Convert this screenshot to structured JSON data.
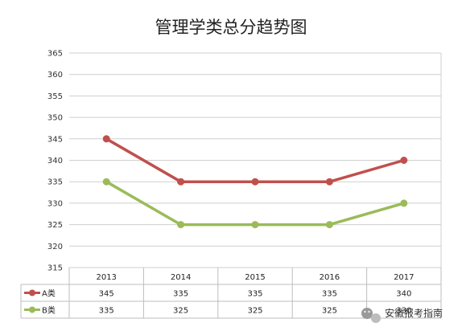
{
  "chart_data": {
    "type": "line",
    "title": "管理学类总分趋势图",
    "xlabel": "",
    "ylabel": "",
    "categories": [
      "2013",
      "2014",
      "2015",
      "2016",
      "2017"
    ],
    "series": [
      {
        "name": "A类",
        "color": "#c0504d",
        "values": [
          345,
          335,
          335,
          335,
          340
        ]
      },
      {
        "name": "B类",
        "color": "#9bbb59",
        "values": [
          335,
          325,
          325,
          325,
          330
        ]
      }
    ],
    "ylim": [
      315,
      365
    ],
    "yticks": [
      315,
      320,
      325,
      330,
      335,
      340,
      345,
      350,
      355,
      360,
      365
    ],
    "grid": true,
    "legend": "data-table"
  },
  "watermark": {
    "text": "安徽报考指南",
    "icon": "wechat-icon"
  }
}
